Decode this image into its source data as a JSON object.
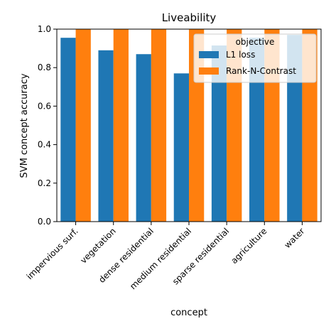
{
  "chart_data": {
    "type": "bar",
    "title": "Liveability",
    "xlabel": "concept",
    "ylabel": "SVM concept accuracy",
    "ylim": [
      0,
      1.0
    ],
    "yticks": [
      "0.0",
      "0.2",
      "0.4",
      "0.6",
      "0.8",
      "1.0"
    ],
    "categories": [
      "impervious surf.",
      "vegetation",
      "dense residential",
      "medium residential",
      "sparse residential",
      "agriculture",
      "water"
    ],
    "series": [
      {
        "name": "L1 loss",
        "color": "#1f77b4",
        "values": [
          0.955,
          0.89,
          0.87,
          0.77,
          0.915,
          0.955,
          0.97
        ]
      },
      {
        "name": "Rank-N-Contrast",
        "color": "#ff7f0e",
        "values": [
          1.0,
          1.0,
          1.0,
          1.0,
          1.0,
          1.0,
          1.0
        ]
      }
    ],
    "grid": false,
    "legend": {
      "title": "objective",
      "placement": "top-right"
    }
  }
}
